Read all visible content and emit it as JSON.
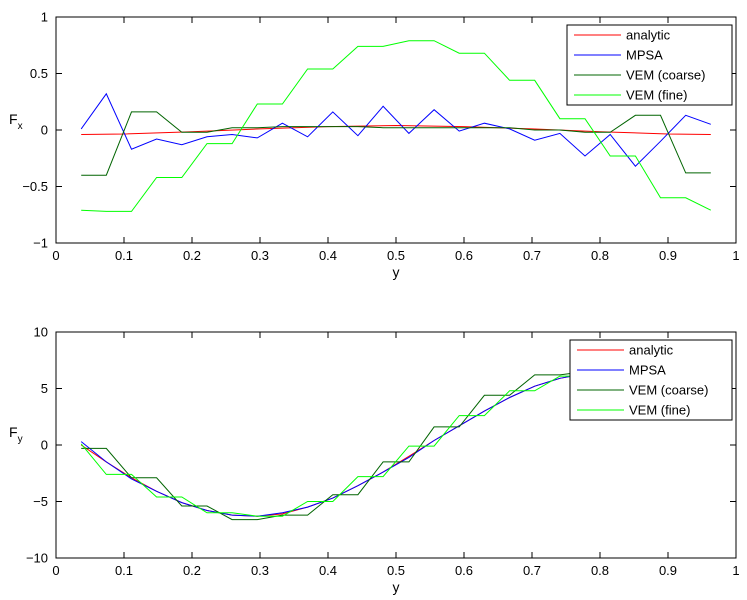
{
  "chart_data": [
    {
      "type": "line",
      "xlabel": "y",
      "ylabel_main": "F",
      "ylabel_sub": "x",
      "xlim": [
        0,
        1
      ],
      "ylim": [
        -1,
        1
      ],
      "xticks": [
        0,
        0.1,
        0.2,
        0.3,
        0.4,
        0.5,
        0.6,
        0.7,
        0.8,
        0.9,
        1
      ],
      "xtick_labels": [
        "0",
        "0.1",
        "0.2",
        "0.3",
        "0.4",
        "0.5",
        "0.6",
        "0.7",
        "0.8",
        "0.9",
        "1"
      ],
      "yticks": [
        -1,
        -0.5,
        0,
        0.5,
        1
      ],
      "ytick_labels": [
        "−1",
        "−0.5",
        "0",
        "0.5",
        "1"
      ],
      "legend_position": "top-right",
      "series": [
        {
          "name": "analytic",
          "color": "#ff0000",
          "x": [
            0.037,
            0.1,
            0.2,
            0.3,
            0.4,
            0.5,
            0.6,
            0.7,
            0.8,
            0.9,
            0.963
          ],
          "y": [
            -0.04,
            -0.035,
            -0.015,
            0.01,
            0.03,
            0.04,
            0.03,
            0.01,
            -0.015,
            -0.035,
            -0.04
          ]
        },
        {
          "name": "MPSA",
          "color": "#0000ff",
          "x": [
            0.037,
            0.074,
            0.111,
            0.148,
            0.185,
            0.222,
            0.259,
            0.296,
            0.333,
            0.37,
            0.407,
            0.444,
            0.481,
            0.519,
            0.556,
            0.593,
            0.63,
            0.667,
            0.704,
            0.741,
            0.778,
            0.815,
            0.852,
            0.889,
            0.926,
            0.963
          ],
          "y": [
            0.01,
            0.32,
            -0.17,
            -0.08,
            -0.13,
            -0.06,
            -0.04,
            -0.07,
            0.06,
            -0.06,
            0.16,
            -0.05,
            0.21,
            -0.03,
            0.18,
            -0.01,
            0.06,
            0.01,
            -0.09,
            -0.03,
            -0.23,
            -0.04,
            -0.32,
            -0.1,
            0.13,
            0.05
          ]
        },
        {
          "name": "VEM (coarse)",
          "color": "#006400",
          "x": [
            0.037,
            0.074,
            0.111,
            0.148,
            0.185,
            0.222,
            0.259,
            0.296,
            0.333,
            0.37,
            0.407,
            0.444,
            0.481,
            0.519,
            0.556,
            0.593,
            0.63,
            0.667,
            0.704,
            0.741,
            0.778,
            0.815,
            0.852,
            0.889,
            0.926,
            0.963
          ],
          "y": [
            -0.4,
            -0.4,
            0.16,
            0.16,
            -0.02,
            -0.02,
            0.02,
            0.02,
            0.03,
            0.03,
            0.03,
            0.03,
            0.02,
            0.02,
            0.02,
            0.02,
            0.02,
            0.02,
            0.0,
            0.0,
            -0.02,
            -0.02,
            0.13,
            0.13,
            -0.38,
            -0.38
          ]
        },
        {
          "name": "VEM (fine)",
          "color": "#00ff00",
          "x": [
            0.037,
            0.074,
            0.111,
            0.148,
            0.185,
            0.222,
            0.259,
            0.296,
            0.333,
            0.37,
            0.407,
            0.444,
            0.481,
            0.519,
            0.556,
            0.593,
            0.63,
            0.667,
            0.704,
            0.741,
            0.778,
            0.815,
            0.852,
            0.889,
            0.926,
            0.963
          ],
          "y": [
            -0.71,
            -0.72,
            -0.72,
            -0.42,
            -0.42,
            -0.12,
            -0.12,
            0.23,
            0.23,
            0.54,
            0.54,
            0.74,
            0.74,
            0.79,
            0.79,
            0.68,
            0.68,
            0.44,
            0.44,
            0.1,
            0.1,
            -0.23,
            -0.23,
            -0.6,
            -0.6,
            -0.71
          ]
        }
      ]
    },
    {
      "type": "line",
      "xlabel": "y",
      "ylabel_main": "F",
      "ylabel_sub": "y",
      "xlim": [
        0,
        1
      ],
      "ylim": [
        -10,
        10
      ],
      "xticks": [
        0,
        0.1,
        0.2,
        0.3,
        0.4,
        0.5,
        0.6,
        0.7,
        0.8,
        0.9,
        1
      ],
      "xtick_labels": [
        "0",
        "0.1",
        "0.2",
        "0.3",
        "0.4",
        "0.5",
        "0.6",
        "0.7",
        "0.8",
        "0.9",
        "1"
      ],
      "yticks": [
        -10,
        -5,
        0,
        5,
        10
      ],
      "ytick_labels": [
        "−10",
        "−5",
        "0",
        "5",
        "10"
      ],
      "legend_position": "top-right",
      "series": [
        {
          "name": "analytic",
          "color": "#ff0000",
          "x": [
            0.037,
            0.074,
            0.111,
            0.148,
            0.185,
            0.222,
            0.259,
            0.296,
            0.333,
            0.37,
            0.407,
            0.444,
            0.481,
            0.519,
            0.556,
            0.593,
            0.63,
            0.667,
            0.704,
            0.741,
            0.778,
            0.815,
            0.852,
            0.889,
            0.926,
            0.963
          ],
          "y": [
            0.0,
            -1.5,
            -2.9,
            -4.1,
            -5.1,
            -5.8,
            -6.2,
            -6.3,
            -6.1,
            -5.5,
            -4.7,
            -3.6,
            -2.4,
            -1.0,
            0.4,
            1.7,
            3.0,
            4.2,
            5.2,
            5.9,
            6.3,
            6.3,
            6.0,
            5.4,
            4.5,
            3.4
          ]
        },
        {
          "name": "MPSA",
          "color": "#0000ff",
          "x": [
            0.037,
            0.074,
            0.111,
            0.148,
            0.185,
            0.222,
            0.259,
            0.296,
            0.333,
            0.37,
            0.407,
            0.444,
            0.481,
            0.519,
            0.556,
            0.593,
            0.63,
            0.667,
            0.704,
            0.741,
            0.778,
            0.815,
            0.852,
            0.889,
            0.926,
            0.963
          ],
          "y": [
            0.3,
            -1.5,
            -3.0,
            -4.1,
            -5.1,
            -5.8,
            -6.2,
            -6.3,
            -6.0,
            -5.5,
            -4.7,
            -3.6,
            -2.4,
            -1.1,
            0.4,
            1.7,
            3.0,
            4.2,
            5.2,
            5.9,
            6.3,
            6.3,
            6.0,
            5.4,
            4.5,
            3.4
          ]
        },
        {
          "name": "VEM (coarse)",
          "color": "#006400",
          "x": [
            0.037,
            0.074,
            0.111,
            0.148,
            0.185,
            0.222,
            0.259,
            0.296,
            0.333,
            0.37,
            0.407,
            0.444,
            0.481,
            0.519,
            0.556,
            0.593,
            0.63,
            0.667,
            0.704,
            0.741,
            0.778,
            0.815,
            0.852,
            0.889,
            0.926,
            0.963
          ],
          "y": [
            -0.3,
            -0.3,
            -2.9,
            -2.9,
            -5.4,
            -5.4,
            -6.6,
            -6.6,
            -6.2,
            -6.2,
            -4.4,
            -4.4,
            -1.5,
            -1.5,
            1.6,
            1.6,
            4.4,
            4.4,
            6.2,
            6.2,
            6.5,
            6.5,
            5.9,
            5.9,
            4.3,
            4.3
          ]
        },
        {
          "name": "VEM (fine)",
          "color": "#00ff00",
          "x": [
            0.037,
            0.074,
            0.111,
            0.148,
            0.185,
            0.222,
            0.259,
            0.296,
            0.333,
            0.37,
            0.407,
            0.444,
            0.481,
            0.519,
            0.556,
            0.593,
            0.63,
            0.667,
            0.704,
            0.741,
            0.778,
            0.815,
            0.852,
            0.889,
            0.926,
            0.963
          ],
          "y": [
            0.1,
            -2.6,
            -2.6,
            -4.6,
            -4.6,
            -6.0,
            -6.0,
            -6.3,
            -6.3,
            -5.0,
            -5.0,
            -2.8,
            -2.8,
            -0.1,
            -0.1,
            2.6,
            2.6,
            4.8,
            4.8,
            6.1,
            6.1,
            6.4,
            6.4,
            5.6,
            5.6,
            3.6
          ]
        }
      ]
    }
  ]
}
